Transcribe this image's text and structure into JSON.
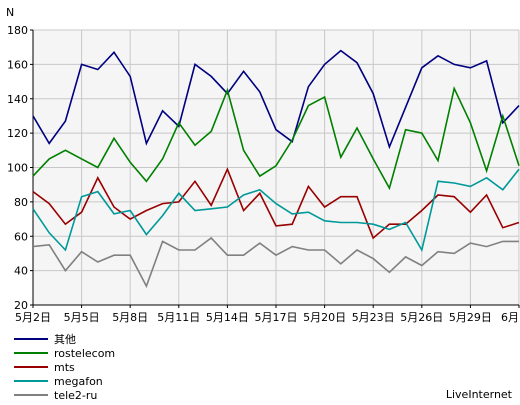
{
  "chart_data": {
    "type": "line",
    "ylabel": "N",
    "ylim": [
      20,
      180
    ],
    "yticks": [
      20,
      40,
      60,
      80,
      100,
      120,
      140,
      160,
      180
    ],
    "grid": true,
    "x": [
      "5月2日",
      "5月3日",
      "5月4日",
      "5月5日",
      "5月6日",
      "5月7日",
      "5月8日",
      "5月9日",
      "5月10日",
      "5月11日",
      "5月12日",
      "5月13日",
      "5月14日",
      "5月15日",
      "5月16日",
      "5月17日",
      "5月18日",
      "5月19日",
      "5月20日",
      "5月21日",
      "5月22日",
      "5月23日",
      "5月24日",
      "5月25日",
      "5月26日",
      "5月27日",
      "5月28日",
      "5月29日",
      "5月30日",
      "5月31日",
      "6月1日"
    ],
    "x_tick_labels": [
      "5月2日",
      "5月5日",
      "5月8日",
      "5月11日",
      "5月14日",
      "5月17日",
      "5月20日",
      "5月23日",
      "5月26日",
      "5月29日",
      "6月1日"
    ],
    "series": [
      {
        "name": "其他",
        "color": "#000080",
        "values": [
          130,
          114,
          127,
          160,
          157,
          167,
          153,
          114,
          133,
          124,
          160,
          153,
          143,
          156,
          144,
          122,
          115,
          147,
          160,
          168,
          161,
          143,
          112,
          135,
          158,
          165,
          160,
          158,
          162,
          126,
          136
        ]
      },
      {
        "name": "rostelecom",
        "color": "#008000",
        "values": [
          95,
          105,
          110,
          105,
          100,
          117,
          103,
          92,
          105,
          126,
          113,
          121,
          145,
          110,
          95,
          101,
          116,
          136,
          141,
          106,
          123,
          105,
          88,
          122,
          120,
          104,
          146,
          126,
          98,
          130,
          101
        ]
      },
      {
        "name": "mts",
        "color": "#990000",
        "values": [
          86,
          79,
          67,
          74,
          94,
          77,
          70,
          75,
          79,
          80,
          92,
          78,
          99,
          75,
          85,
          66,
          67,
          89,
          77,
          83,
          83,
          59,
          67,
          67,
          75,
          84,
          83,
          74,
          84,
          65,
          68
        ]
      },
      {
        "name": "megafon",
        "color": "#009999",
        "values": [
          76,
          62,
          52,
          83,
          86,
          73,
          75,
          61,
          72,
          85,
          75,
          76,
          77,
          84,
          87,
          79,
          73,
          74,
          69,
          68,
          68,
          67,
          64,
          68,
          52,
          92,
          91,
          89,
          94,
          87,
          99
        ]
      },
      {
        "name": "tele2-ru",
        "color": "#808080",
        "values": [
          54,
          55,
          40,
          51,
          45,
          49,
          49,
          31,
          57,
          52,
          52,
          59,
          49,
          49,
          56,
          49,
          54,
          52,
          52,
          44,
          52,
          47,
          39,
          48,
          43,
          51,
          50,
          56,
          54,
          57,
          57
        ]
      }
    ],
    "legend_position": "bottom-left",
    "watermark": "LiveInternet"
  }
}
